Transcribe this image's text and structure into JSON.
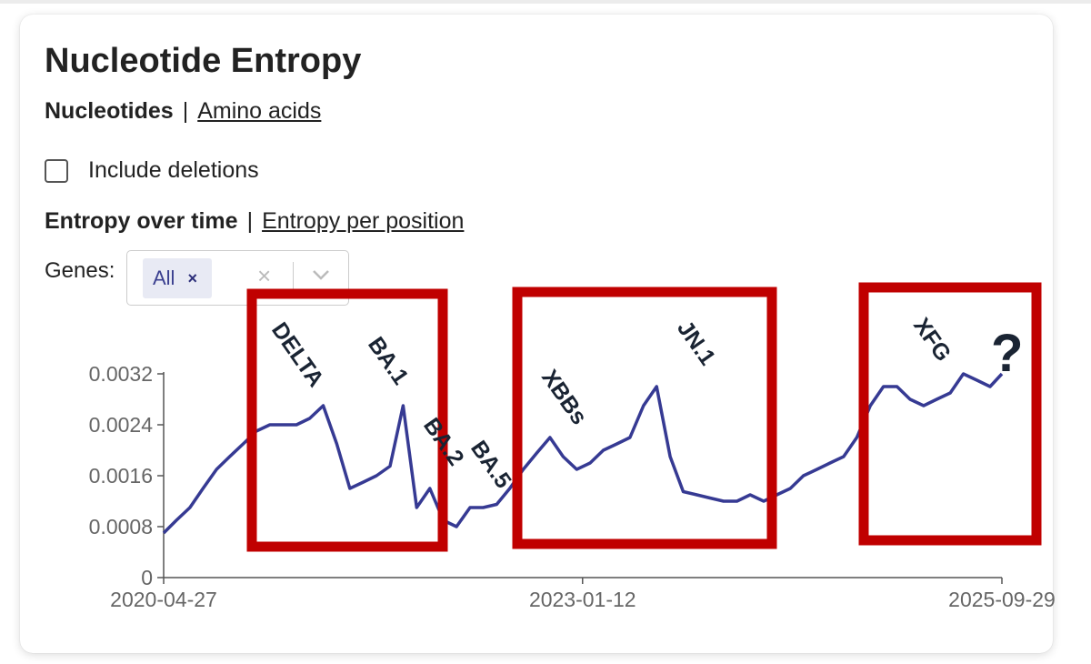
{
  "panel": {
    "title": "Nucleotide Entropy",
    "tabs": {
      "active": "Nucleotides",
      "separator": "|",
      "other": "Amino acids"
    },
    "include_deletions_label": "Include deletions",
    "view_tabs": {
      "active": "Entropy over time",
      "separator": "|",
      "other": "Entropy per position"
    },
    "genes_label": "Genes:",
    "genes_selected": "All",
    "chip_remove": "×",
    "clear_all": "×"
  },
  "colors": {
    "line": "#363a93",
    "annotation_box": "#c00000",
    "annotation_text": "#1a2433",
    "axis": "#555555"
  },
  "chart_data": {
    "type": "line",
    "title": "",
    "xlabel": "",
    "ylabel": "",
    "ylim": [
      0,
      0.0032
    ],
    "y_ticks": [
      "0",
      "0.0008",
      "0.0016",
      "0.0024",
      "0.0032"
    ],
    "x_ticks": [
      "2020-04-27",
      "2023-01-12",
      "2025-09-29"
    ],
    "grid": false,
    "series": [
      {
        "x": [
          "2020-04-27",
          "2020-05-27",
          "2020-06-28",
          "2020-07-29",
          "2020-08-30",
          "2020-09-30",
          "2020-11-01",
          "2020-12-02",
          "2021-01-03",
          "2021-02-03",
          "2021-03-07",
          "2021-04-07",
          "2021-05-09",
          "2021-06-10",
          "2021-07-11",
          "2021-08-12",
          "2021-09-12",
          "2021-10-14",
          "2021-11-14",
          "2021-12-16",
          "2022-01-16",
          "2022-02-17",
          "2022-03-20",
          "2022-04-21",
          "2022-05-22",
          "2022-06-23",
          "2022-07-24",
          "2022-08-25",
          "2022-09-25",
          "2022-10-27",
          "2022-11-27",
          "2022-12-29",
          "2023-01-30",
          "2023-03-02",
          "2023-04-03",
          "2023-05-04",
          "2023-06-05",
          "2023-07-06",
          "2023-08-07",
          "2023-09-07",
          "2023-10-09",
          "2023-11-09",
          "2023-12-11",
          "2024-01-12",
          "2024-02-12",
          "2024-03-15",
          "2024-04-15",
          "2024-05-17",
          "2024-06-17",
          "2024-07-19",
          "2024-08-19",
          "2024-09-20",
          "2024-10-21",
          "2024-11-22",
          "2024-12-23",
          "2025-01-24",
          "2025-02-24",
          "2025-03-28",
          "2025-04-28",
          "2025-05-30",
          "2025-06-30",
          "2025-08-01",
          "2025-09-01",
          "2025-09-29"
        ],
        "y": [
          0.0007,
          0.0009,
          0.0011,
          0.0014,
          0.0017,
          0.0019,
          0.0021,
          0.0023,
          0.0024,
          0.0024,
          0.0024,
          0.0025,
          0.0027,
          0.0021,
          0.0014,
          0.0015,
          0.0016,
          0.00175,
          0.0027,
          0.0011,
          0.0014,
          0.0009,
          0.0008,
          0.0011,
          0.0011,
          0.00115,
          0.0014,
          0.0017,
          0.00195,
          0.0022,
          0.0019,
          0.0017,
          0.0018,
          0.002,
          0.0021,
          0.0022,
          0.0027,
          0.003,
          0.0019,
          0.00135,
          0.0013,
          0.00125,
          0.0012,
          0.0012,
          0.0013,
          0.0012,
          0.0013,
          0.0014,
          0.0016,
          0.0017,
          0.0018,
          0.0019,
          0.0022,
          0.0027,
          0.003,
          0.003,
          0.0028,
          0.0027,
          0.0028,
          0.0029,
          0.0032,
          0.0031,
          0.003,
          0.0032
        ]
      }
    ],
    "annotations": {
      "delta_label": "DELTA",
      "ba1_label": "BA.1",
      "ba2_label": "BA.2",
      "ba5_label": "BA.5",
      "xbbs_label": "XBBs",
      "jn1_label": "JN.1",
      "xfg_label": "XFG",
      "question_label": "?"
    }
  }
}
